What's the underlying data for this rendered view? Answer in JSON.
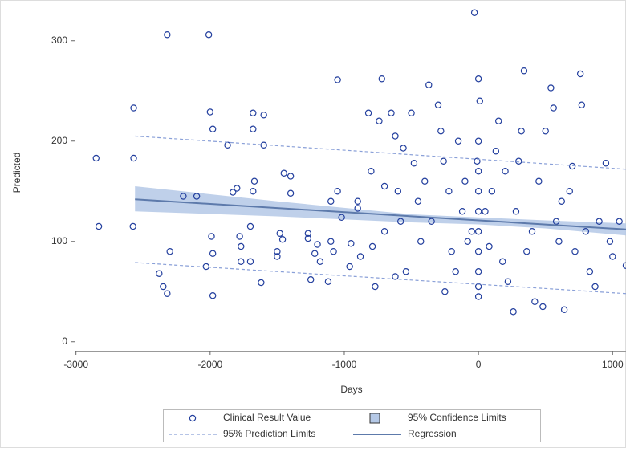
{
  "chart_data": {
    "type": "scatter",
    "xlabel": "Days",
    "ylabel": "Predicted",
    "xlim": [
      -3010,
      1100
    ],
    "ylim": [
      -9,
      335
    ],
    "xticks": [
      -3000,
      -2000,
      -1000,
      0,
      1000
    ],
    "yticks": [
      0,
      100,
      200,
      300
    ],
    "series": [
      {
        "name": "Clinical Result Value",
        "color": "#233f9e",
        "x": [
          -2850,
          -2830,
          -2570,
          -2570,
          -2575,
          -2320,
          -2010,
          -2000,
          -1980,
          -2300,
          -2350,
          -2380,
          -2320,
          -2200,
          -2100,
          -1990,
          -1980,
          -2030,
          -1980,
          -1870,
          -1800,
          -1830,
          -1780,
          -1770,
          -1770,
          -1680,
          -1680,
          -1670,
          -1680,
          -1700,
          -1700,
          -1600,
          -1600,
          -1620,
          -1480,
          -1460,
          -1500,
          -1500,
          -1450,
          -1400,
          -1400,
          -1270,
          -1270,
          -1250,
          -1200,
          -1220,
          -1180,
          -1120,
          -1100,
          -1100,
          -1080,
          -1050,
          -1050,
          -1020,
          -950,
          -960,
          -900,
          -880,
          -800,
          -820,
          -790,
          -770,
          -720,
          -740,
          -700,
          -700,
          -650,
          -620,
          -600,
          -580,
          -560,
          -540,
          -500,
          -480,
          -450,
          -430,
          -400,
          -370,
          -350,
          -300,
          -280,
          -260,
          -220,
          -200,
          -170,
          -150,
          -120,
          -100,
          -80,
          -50,
          -30,
          -10,
          0,
          0,
          0,
          0,
          0,
          0,
          0,
          0,
          0,
          0,
          10,
          50,
          80,
          100,
          130,
          150,
          180,
          200,
          220,
          260,
          280,
          300,
          320,
          340,
          360,
          400,
          420,
          450,
          480,
          500,
          540,
          560,
          580,
          600,
          640,
          680,
          720,
          760,
          770,
          800,
          830,
          870,
          900,
          950,
          980,
          1000,
          1050,
          1100,
          700,
          620,
          -250,
          -620,
          -900
        ],
        "values": [
          183,
          115,
          233,
          183,
          115,
          306,
          306,
          229,
          212,
          90,
          55,
          68,
          48,
          145,
          145,
          105,
          88,
          75,
          46,
          196,
          153,
          149,
          105,
          95,
          80,
          228,
          212,
          160,
          150,
          115,
          80,
          196,
          226,
          59,
          108,
          102,
          90,
          85,
          168,
          165,
          148,
          108,
          103,
          62,
          97,
          88,
          80,
          60,
          140,
          100,
          90,
          261,
          150,
          124,
          98,
          75,
          133,
          85,
          170,
          228,
          95,
          55,
          262,
          220,
          155,
          110,
          228,
          205,
          150,
          120,
          193,
          70,
          228,
          178,
          140,
          100,
          160,
          256,
          120,
          236,
          210,
          180,
          150,
          90,
          70,
          200,
          130,
          160,
          100,
          110,
          328,
          180,
          262,
          200,
          170,
          150,
          130,
          110,
          90,
          70,
          55,
          45,
          240,
          130,
          95,
          150,
          190,
          220,
          80,
          170,
          60,
          30,
          130,
          180,
          210,
          270,
          90,
          110,
          40,
          160,
          35,
          210,
          253,
          233,
          120,
          100,
          32,
          150,
          90,
          267,
          236,
          110,
          70,
          55,
          120,
          178,
          100,
          85,
          120,
          76,
          175,
          140,
          50,
          65,
          140
        ]
      },
      {
        "name": "95% Confidence Limits",
        "color": "#b4c8e6",
        "x": [
          -2560,
          -1500,
          -500,
          0,
          500,
          1100
        ],
        "upper": [
          155,
          140,
          127,
          124,
          121,
          118
        ],
        "lower": [
          130,
          125,
          119,
          117,
          113,
          106
        ]
      },
      {
        "name": "95% Prediction Limits",
        "color": "#8aa0d8",
        "x": [
          -2560,
          1100
        ],
        "upper": [
          205,
          172
        ],
        "lower": [
          79,
          48
        ]
      },
      {
        "name": "Regression",
        "color": "#5d7aab",
        "x": [
          -2560,
          1100
        ],
        "values": [
          142,
          112
        ]
      }
    ]
  }
}
